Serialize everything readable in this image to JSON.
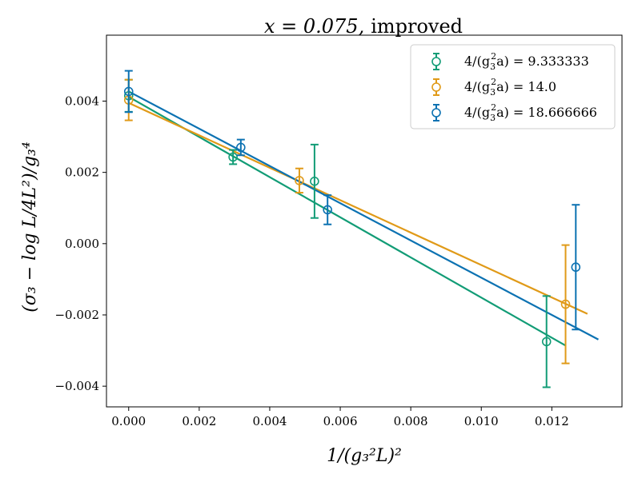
{
  "chart_data": {
    "type": "scatter",
    "title_math": "x = 0.075,",
    "title_word": "improved",
    "xlabel": "1/(g₃²L)²",
    "ylabel": "(σ₃ − log L/4L²)/g₃⁴",
    "xlim": [
      -0.00063,
      0.01399
    ],
    "ylim": [
      -0.00458,
      0.00585
    ],
    "x_ticks": [
      0.0,
      0.002,
      0.004,
      0.006,
      0.008,
      0.01,
      0.012
    ],
    "x_tick_labels": [
      "0.000",
      "0.002",
      "0.004",
      "0.006",
      "0.008",
      "0.010",
      "0.012"
    ],
    "y_ticks": [
      -0.004,
      -0.002,
      0.0,
      0.002,
      0.004
    ],
    "y_tick_labels": [
      "−0.004",
      "−0.002",
      "0.000",
      "0.002",
      "0.004"
    ],
    "grid": false,
    "legend_position": "top-right",
    "series": [
      {
        "name": "4/(g₃²a) = 9.333333",
        "label_prefix": "4/(g",
        "label_suffix": "a) = 9.333333",
        "color": "#129c76",
        "points": [
          {
            "x": 0.0,
            "y": 0.00415,
            "err": 0.00045
          },
          {
            "x": 0.00296,
            "y": 0.00243,
            "err": 0.0002
          },
          {
            "x": 0.00527,
            "y": 0.00175,
            "err": 0.00103
          },
          {
            "x": 0.01185,
            "y": -0.00275,
            "err": 0.00128
          }
        ],
        "fit": {
          "x": [
            0.0,
            0.01239
          ],
          "y": [
            0.00412,
            -0.00286
          ]
        }
      },
      {
        "name": "4/(g₃²a) = 14.0",
        "label_prefix": "4/(g",
        "label_suffix": "a) = 14.0",
        "color": "#e09a18",
        "points": [
          {
            "x": 0.0,
            "y": 0.00403,
            "err": 0.00057
          },
          {
            "x": 0.00484,
            "y": 0.00177,
            "err": 0.00034
          },
          {
            "x": 0.01239,
            "y": -0.0017,
            "err": 0.00166
          }
        ],
        "fit": {
          "x": [
            0.0,
            0.01301
          ],
          "y": [
            0.00395,
            -0.00197
          ]
        }
      },
      {
        "name": "4/(g₃²a) = 18.666666",
        "label_prefix": "4/(g",
        "label_suffix": "a) = 18.666666",
        "color": "#0c72b2",
        "points": [
          {
            "x": 0.0,
            "y": 0.00427,
            "err": 0.00058
          },
          {
            "x": 0.00318,
            "y": 0.0027,
            "err": 0.00022
          },
          {
            "x": 0.00564,
            "y": 0.00095,
            "err": 0.00041
          },
          {
            "x": 0.01268,
            "y": -0.00066,
            "err": 0.00175
          }
        ],
        "fit": {
          "x": [
            0.0,
            0.01332
          ],
          "y": [
            0.00427,
            -0.00269
          ]
        }
      }
    ]
  }
}
